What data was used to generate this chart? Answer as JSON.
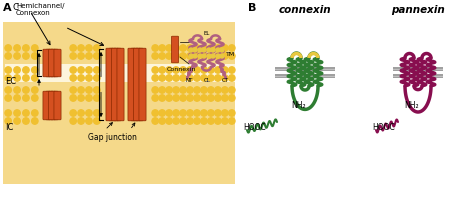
{
  "bg_color": "#ffffff",
  "panel_A_label": "A",
  "panel_B_label": "B",
  "label_EC": "EC",
  "label_IC": "IC",
  "label_C": "C",
  "label_hemichannel": "Hemichannel/\nConnexon",
  "label_gap_junction": "Gap junction",
  "label_connexin_small": "Connexin",
  "label_NT": "NT",
  "label_CL": "CL",
  "label_CT": "CT",
  "label_EL": "EL",
  "label_TM": "TM",
  "label_connexin_B": "connexin",
  "label_pannexin_B": "pannexin",
  "label_NH2_cx": "NH₂",
  "label_NH2_px": "NH₂",
  "label_HOOC_cx": "HOOC",
  "label_HOOC_px": "HOOC",
  "membrane_yellow": "#f0c030",
  "membrane_bg_top": "#f5d98a",
  "membrane_bg_bot": "#f5d98a",
  "ec_space_color": "#fdf5dc",
  "channel_color": "#d45020",
  "channel_edge": "#8b2800",
  "connexin_green": "#2e7d32",
  "connexin_loop_green": "#43a047",
  "pannexin_color": "#880e4f",
  "pannexin_loop": "#ad1457",
  "membrane_gray1": "#a0a0a0",
  "membrane_gray2": "#c0c0c0",
  "helix_mauve": "#b06080",
  "helix_yellow_accent": "#e8c840",
  "text_color": "#222222"
}
